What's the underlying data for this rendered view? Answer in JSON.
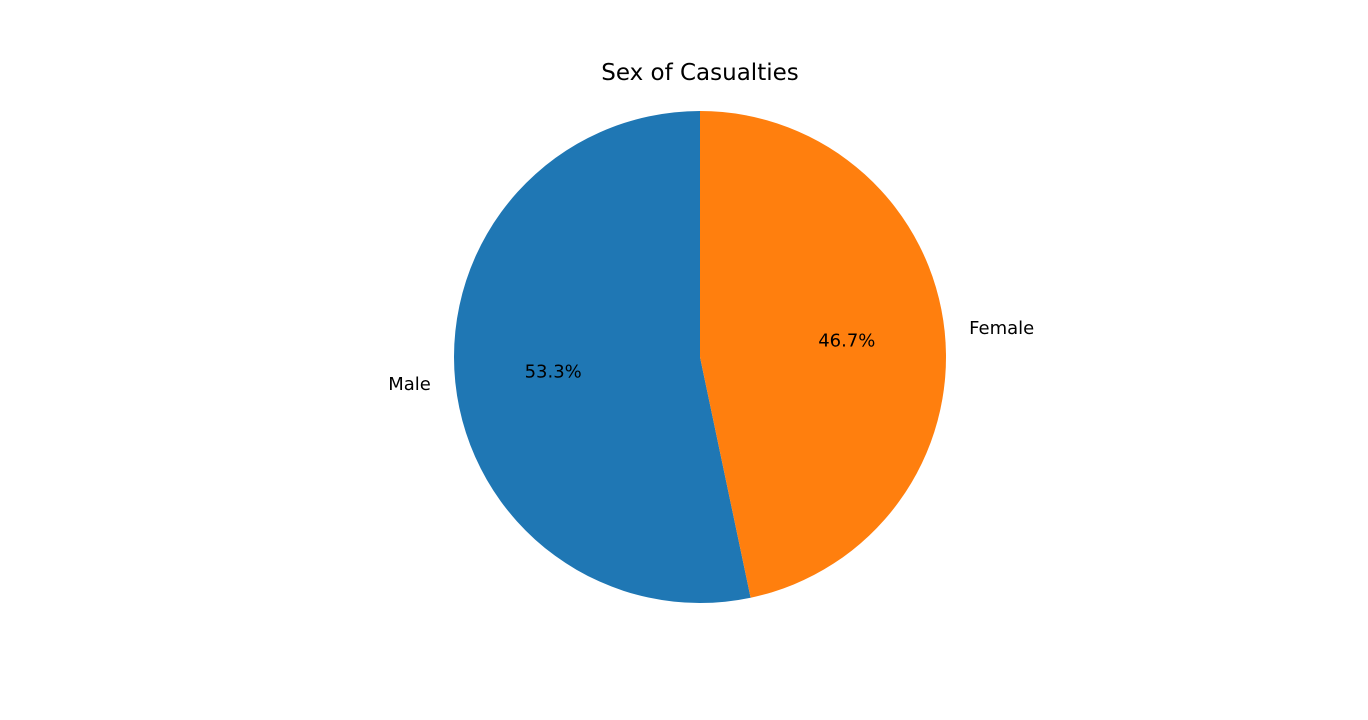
{
  "chart_data": {
    "type": "pie",
    "title": "Sex of Casualties",
    "categories": [
      "Male",
      "Female"
    ],
    "values": [
      53.3,
      46.7
    ],
    "percent_labels": [
      "53.3%",
      "46.7%"
    ],
    "colors": [
      "#1f77b4",
      "#ff7f0e"
    ],
    "start_angle_deg": 90,
    "direction": "counterclockwise",
    "legend": "none"
  }
}
